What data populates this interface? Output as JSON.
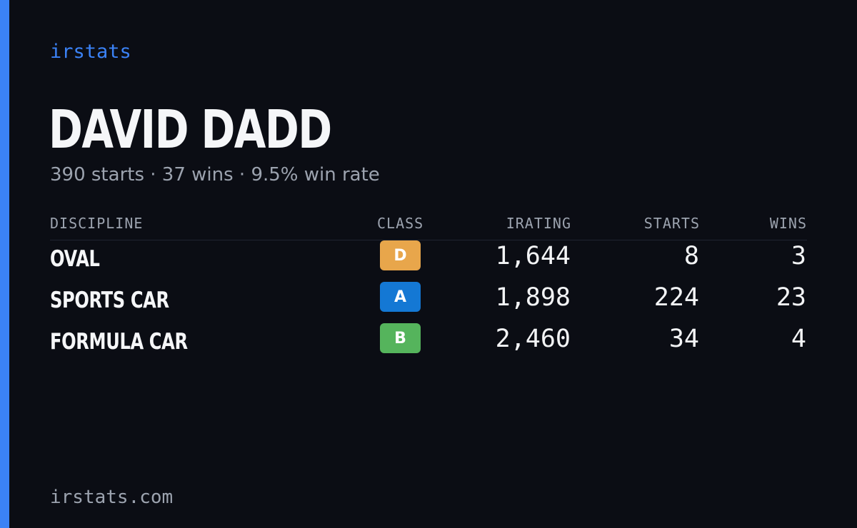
{
  "brand": "irstats",
  "driver": {
    "name": "DAVID DADD",
    "summary": "390 starts · 37 wins · 9.5% win rate"
  },
  "table": {
    "headers": {
      "discipline": "DISCIPLINE",
      "class": "CLASS",
      "irating": "IRATING",
      "starts": "STARTS",
      "wins": "WINS"
    },
    "rows": [
      {
        "discipline": "OVAL",
        "class": "D",
        "class_color": "#e8a64b",
        "irating": "1,644",
        "starts": "8",
        "wins": "3"
      },
      {
        "discipline": "SPORTS CAR",
        "class": "A",
        "class_color": "#1478d4",
        "irating": "1,898",
        "starts": "224",
        "wins": "23"
      },
      {
        "discipline": "FORMULA CAR",
        "class": "B",
        "class_color": "#55b45c",
        "irating": "2,460",
        "starts": "34",
        "wins": "4"
      }
    ]
  },
  "footer": "irstats.com",
  "colors": {
    "accent": "#3b82f6",
    "background": "#0b0d14",
    "muted": "#9ca3af"
  }
}
